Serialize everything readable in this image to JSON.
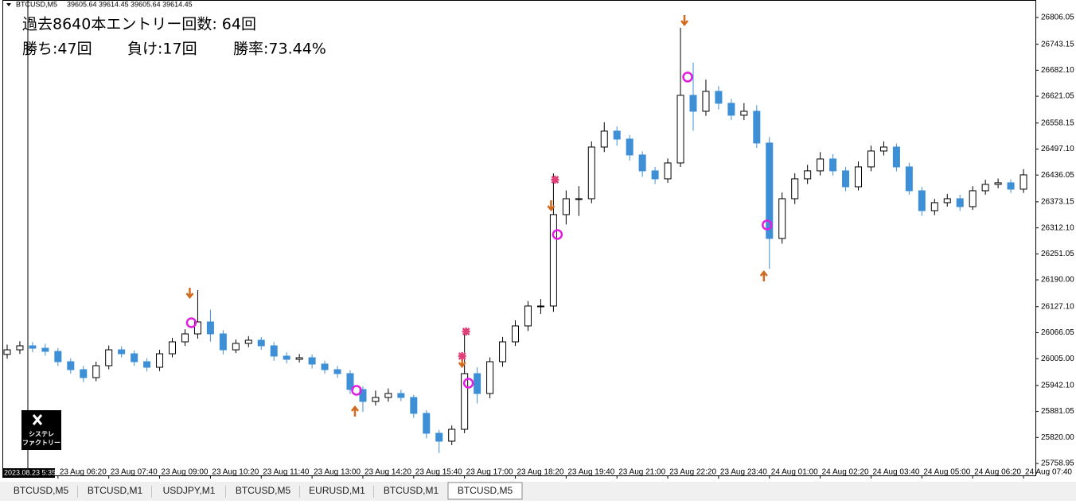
{
  "header": {
    "symbol": "BTCUSD,M5",
    "quote": "39605.64 39614.45 39605.64 39614.45",
    "crosshair_label": "2023.08.23 5:35"
  },
  "overlay": {
    "line1": "過去8640本エントリー回数: 64回",
    "wins": "勝ち:47回",
    "losses": "負け:17回",
    "rate": "勝率:73.44%"
  },
  "logo": {
    "line1": "システレ",
    "line2": "ファクトリー"
  },
  "tabs": [
    "BTCUSD,M5",
    "BTCUSD,M1",
    "USDJPY,M1",
    "BTCUSD,M5",
    "EURUSD,M1",
    "BTCUSD,M1",
    "BTCUSD,M5"
  ],
  "chart_data": {
    "type": "candlestick",
    "up_color": "#ffffff",
    "down_color": "#3d8fd6",
    "outline_color": "#000000",
    "x": [
      0,
      4,
      8,
      12,
      16,
      20,
      24,
      28,
      32,
      36,
      40,
      44,
      48,
      52,
      56,
      60,
      64,
      68,
      72,
      76,
      80,
      84,
      88,
      92,
      96,
      100,
      104,
      108,
      112,
      116,
      120,
      124,
      128,
      132,
      136,
      140,
      144,
      148,
      152,
      156,
      160,
      164,
      168,
      172,
      176,
      180,
      184,
      188,
      192,
      196,
      200,
      204,
      208,
      212,
      216,
      220,
      224,
      228,
      232,
      236,
      240,
      244,
      248,
      252,
      256,
      260,
      264,
      268,
      272,
      276,
      280,
      284,
      288,
      292,
      296,
      300,
      304,
      308,
      312,
      316,
      320
    ],
    "open": [
      26015.0,
      26025.8,
      26035.2,
      26029.5,
      26022.1,
      25997.9,
      25979.2,
      25960.5,
      25988.5,
      26025.8,
      26016.5,
      25997.9,
      25984.8,
      26016.5,
      26044.5,
      26063.2,
      26091.2,
      26063.2,
      26025.8,
      26040.8,
      26048.3,
      26035.2,
      26011.0,
      26003.5,
      26007.2,
      25992.3,
      25979.2,
      25969.9,
      25932.6,
      25904.6,
      25913.9,
      25923.2,
      25913.9,
      25876.6,
      25829.9,
      25811.3,
      25839.2,
      25969.9,
      25923.2,
      25997.9,
      26044.5,
      26081.9,
      26128.6,
      26128.6,
      26343.2,
      26380.5,
      26380.5,
      26501.8,
      26539.2,
      26520.5,
      26483.2,
      26445.9,
      26427.2,
      26464.5,
      26623.2,
      26585.8,
      26632.5,
      26604.5,
      26576.5,
      26585.8,
      26511.2,
      26287.2,
      26380.5,
      26427.2,
      26445.9,
      26473.8,
      26445.9,
      26408.5,
      26455.2,
      26492.5,
      26501.8,
      26455.2,
      26399.2,
      26352.5,
      26371.2,
      26380.5,
      26361.9,
      26399.2,
      26414.1,
      26417.9,
      26402.9
    ],
    "high": [
      26038,
      26046,
      26044,
      26040,
      26030,
      26006,
      25988,
      25998,
      26036,
      26034,
      26024,
      26006,
      26026,
      26054,
      26074,
      26165.9,
      26120,
      26072,
      26050,
      26058,
      26056,
      26044,
      26020,
      26016,
      26015,
      26000,
      25988,
      25978,
      25940,
      25930,
      25935,
      25932,
      25920,
      25884,
      25838,
      25848,
      26063.2,
      25985,
      26008,
      26056,
      26095,
      26140,
      26145,
      26440,
      26400,
      26410,
      26515,
      26560,
      26550,
      26530,
      26492,
      26455,
      26475,
      26781.8,
      26700,
      26660,
      26645,
      26615,
      26605,
      26600,
      26525,
      26395,
      26440,
      26460,
      26490,
      26485,
      26455,
      26468,
      26505,
      26515,
      26510,
      26465,
      26408,
      26380,
      26392,
      26390,
      26410,
      26425,
      26428,
      26426,
      26450
    ],
    "low": [
      26005,
      26016,
      26020,
      26012,
      25988,
      25970,
      25950,
      25952,
      25980,
      26008,
      25988,
      25975,
      25976,
      26008,
      26035,
      26052,
      26045,
      26015,
      26018,
      26032,
      26026,
      26000,
      25994,
      25996,
      25982,
      25970,
      25960,
      25922,
      25880,
      25895,
      25904,
      25905,
      25866,
      25818,
      25783.2,
      25802,
      25830,
      25900,
      25912,
      25986,
      26035,
      26070,
      26110,
      26115,
      26320,
      26340,
      26370,
      26490,
      26505,
      26470,
      26432,
      26415,
      26418,
      26455,
      26540,
      26575,
      26590,
      26565,
      26565,
      26500,
      26216.3,
      26275,
      26368,
      26415,
      26435,
      26435,
      26398,
      26400,
      26445,
      26482,
      26445,
      26390,
      26340,
      26342,
      26362,
      26352,
      26354,
      26390,
      26405,
      26394,
      26394
    ],
    "close": [
      26025.8,
      26035.2,
      26029.5,
      26022.1,
      25997.9,
      25979.2,
      25960.5,
      25988.5,
      26025.8,
      26016.5,
      25997.9,
      25984.8,
      26016.5,
      26044.5,
      26063.2,
      26091.2,
      26063.2,
      26025.8,
      26040.8,
      26048.3,
      26035.2,
      26011.0,
      26003.5,
      26007.2,
      25992.3,
      25979.2,
      25969.9,
      25932.6,
      25904.6,
      25913.9,
      25923.2,
      25913.9,
      25876.6,
      25829.9,
      25811.3,
      25839.2,
      25969.9,
      25923.2,
      25997.9,
      26044.5,
      26081.9,
      26128.6,
      26128.6,
      26343.2,
      26380.5,
      26380.5,
      26501.8,
      26539.2,
      26520.5,
      26483.2,
      26445.9,
      26427.2,
      26464.5,
      26623.2,
      26585.8,
      26632.5,
      26604.5,
      26576.5,
      26585.8,
      26511.2,
      26287.2,
      26380.5,
      26427.2,
      26445.9,
      26473.8,
      26445.9,
      26408.5,
      26455.2,
      26492.5,
      26501.8,
      26455.2,
      26399.2,
      26352.5,
      26371.2,
      26380.5,
      26361.9,
      26399.2,
      26414.1,
      26417.9,
      26402.9,
      26436.5
    ],
    "markers": [
      {
        "x": 58,
        "value": 26089.3,
        "shape": "circle",
        "color": "#e01ee0"
      },
      {
        "x": 57.5,
        "value": 26160.3,
        "shape": "arrow-down",
        "color": "#d2691e"
      },
      {
        "x": 110,
        "value": 25930.7,
        "shape": "circle",
        "color": "#e01ee0"
      },
      {
        "x": 109.5,
        "value": 25880.3,
        "shape": "arrow-up",
        "color": "#d2691e"
      },
      {
        "x": 145.25,
        "value": 25947.5,
        "shape": "circle",
        "color": "#e01ee0"
      },
      {
        "x": 143.25,
        "value": 25997.9,
        "shape": "arrow-down",
        "color": "#d2691e"
      },
      {
        "x": 143.25,
        "value": 26011.0,
        "shape": "star",
        "color": "#e0407a"
      },
      {
        "x": 144.5,
        "value": 26068.8,
        "shape": "star",
        "color": "#e0407a"
      },
      {
        "x": 173.25,
        "value": 26296.5,
        "shape": "circle",
        "color": "#e01ee0"
      },
      {
        "x": 171.25,
        "value": 26365.6,
        "shape": "arrow-down",
        "color": "#d2691e"
      },
      {
        "x": 172.5,
        "value": 26425.3,
        "shape": "star",
        "color": "#e0407a"
      },
      {
        "x": 214.25,
        "value": 26666.1,
        "shape": "circle",
        "color": "#e01ee0"
      },
      {
        "x": 213.25,
        "value": 26800.4,
        "shape": "arrow-down",
        "color": "#d2691e"
      },
      {
        "x": 239.25,
        "value": 26318.9,
        "shape": "circle",
        "color": "#e01ee0"
      },
      {
        "x": 238.25,
        "value": 26197.6,
        "shape": "arrow-up",
        "color": "#d2691e"
      }
    ],
    "xlim": [
      -1.25,
      323.75
    ],
    "xticks": [
      {
        "value": 16,
        "label": "23 Aug 06:20"
      },
      {
        "value": 32,
        "label": "23 Aug 07:40"
      },
      {
        "value": 48,
        "label": "23 Aug 09:00"
      },
      {
        "value": 64,
        "label": "23 Aug 10:20"
      },
      {
        "value": 80,
        "label": "23 Aug 11:40"
      },
      {
        "value": 96,
        "label": "23 Aug 13:00"
      },
      {
        "value": 112,
        "label": "23 Aug 14:20"
      },
      {
        "value": 128,
        "label": "23 Aug 15:40"
      },
      {
        "value": 144,
        "label": "23 Aug 17:00"
      },
      {
        "value": 160,
        "label": "23 Aug 18:20"
      },
      {
        "value": 176,
        "label": "23 Aug 19:40"
      },
      {
        "value": 192,
        "label": "23 Aug 21:00"
      },
      {
        "value": 208,
        "label": "23 Aug 22:20"
      },
      {
        "value": 224,
        "label": "23 Aug 23:40"
      },
      {
        "value": 240,
        "label": "24 Aug 01:00"
      },
      {
        "value": 256,
        "label": "24 Aug 02:20"
      },
      {
        "value": 272,
        "label": "24 Aug 03:40"
      },
      {
        "value": 288,
        "label": "24 Aug 05:00"
      },
      {
        "value": 304,
        "label": "24 Aug 06:20"
      },
      {
        "value": 320,
        "label": "24 Aug 07:40"
      }
    ],
    "ylim": [
      25731,
      26847
    ],
    "yticks": [
      {
        "value": 26806.05,
        "label": "26806.05"
      },
      {
        "value": 26743.15,
        "label": "26743.15"
      },
      {
        "value": 26682.1,
        "label": "26682.10"
      },
      {
        "value": 26621.05,
        "label": "26621.05"
      },
      {
        "value": 26558.15,
        "label": "26558.15"
      },
      {
        "value": 26497.1,
        "label": "26497.10"
      },
      {
        "value": 26436.05,
        "label": "26436.05"
      },
      {
        "value": 26373.15,
        "label": "26373.15"
      },
      {
        "value": 26312.1,
        "label": "26312.10"
      },
      {
        "value": 26251.05,
        "label": "26251.05"
      },
      {
        "value": 26190,
        "label": "26190.00"
      },
      {
        "value": 26127.1,
        "label": "26127.10"
      },
      {
        "value": 26066.05,
        "label": "26066.05"
      },
      {
        "value": 26005,
        "label": "26005.00"
      },
      {
        "value": 25942.1,
        "label": "25942.10"
      },
      {
        "value": 25881.05,
        "label": "25881.05"
      },
      {
        "value": 25820,
        "label": "25820.00"
      },
      {
        "value": 25758.95,
        "label": "25758.95"
      }
    ]
  }
}
